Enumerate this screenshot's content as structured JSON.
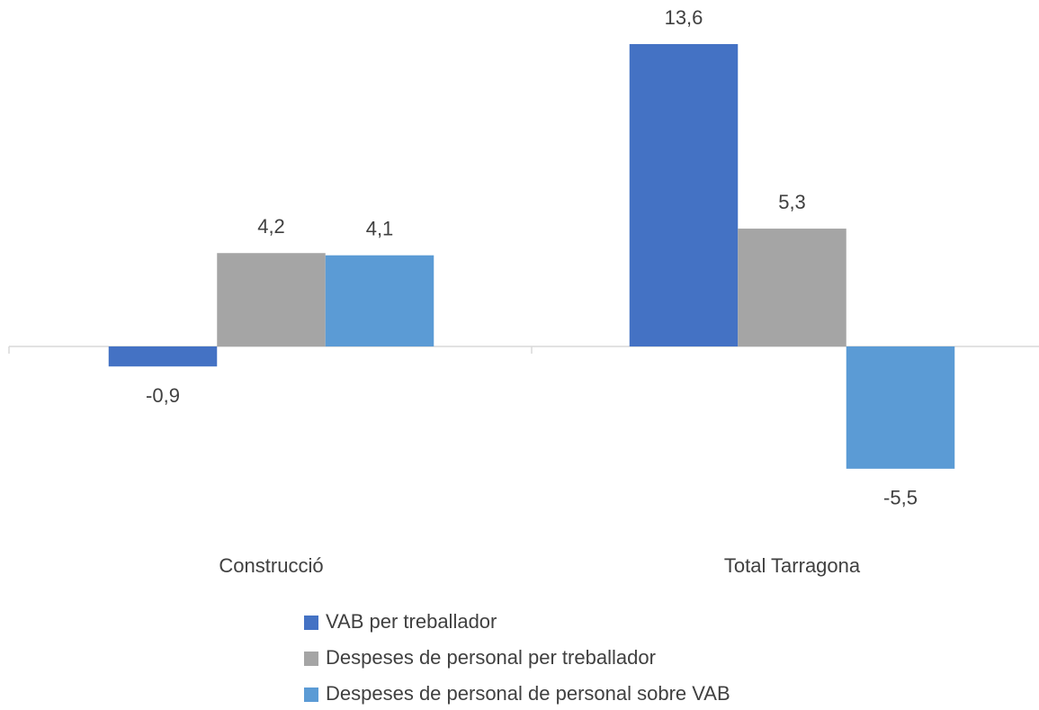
{
  "chart_data": {
    "type": "bar",
    "categories": [
      "Construcció",
      "Total Tarragona"
    ],
    "series": [
      {
        "name": "VAB per treballador",
        "color": "#4472c4",
        "values": [
          -0.9,
          13.6
        ],
        "value_labels": [
          "-0,9",
          "13,6"
        ]
      },
      {
        "name": "Despeses de personal per treballador",
        "color": "#a5a5a5",
        "values": [
          4.2,
          5.3
        ],
        "value_labels": [
          "4,2",
          "5,3"
        ]
      },
      {
        "name": "Despeses de personal de personal sobre VAB",
        "color": "#5b9bd5",
        "values": [
          4.1,
          -5.5
        ],
        "value_labels": [
          "4,1",
          "-5,5"
        ]
      }
    ],
    "legend": "bottom"
  }
}
